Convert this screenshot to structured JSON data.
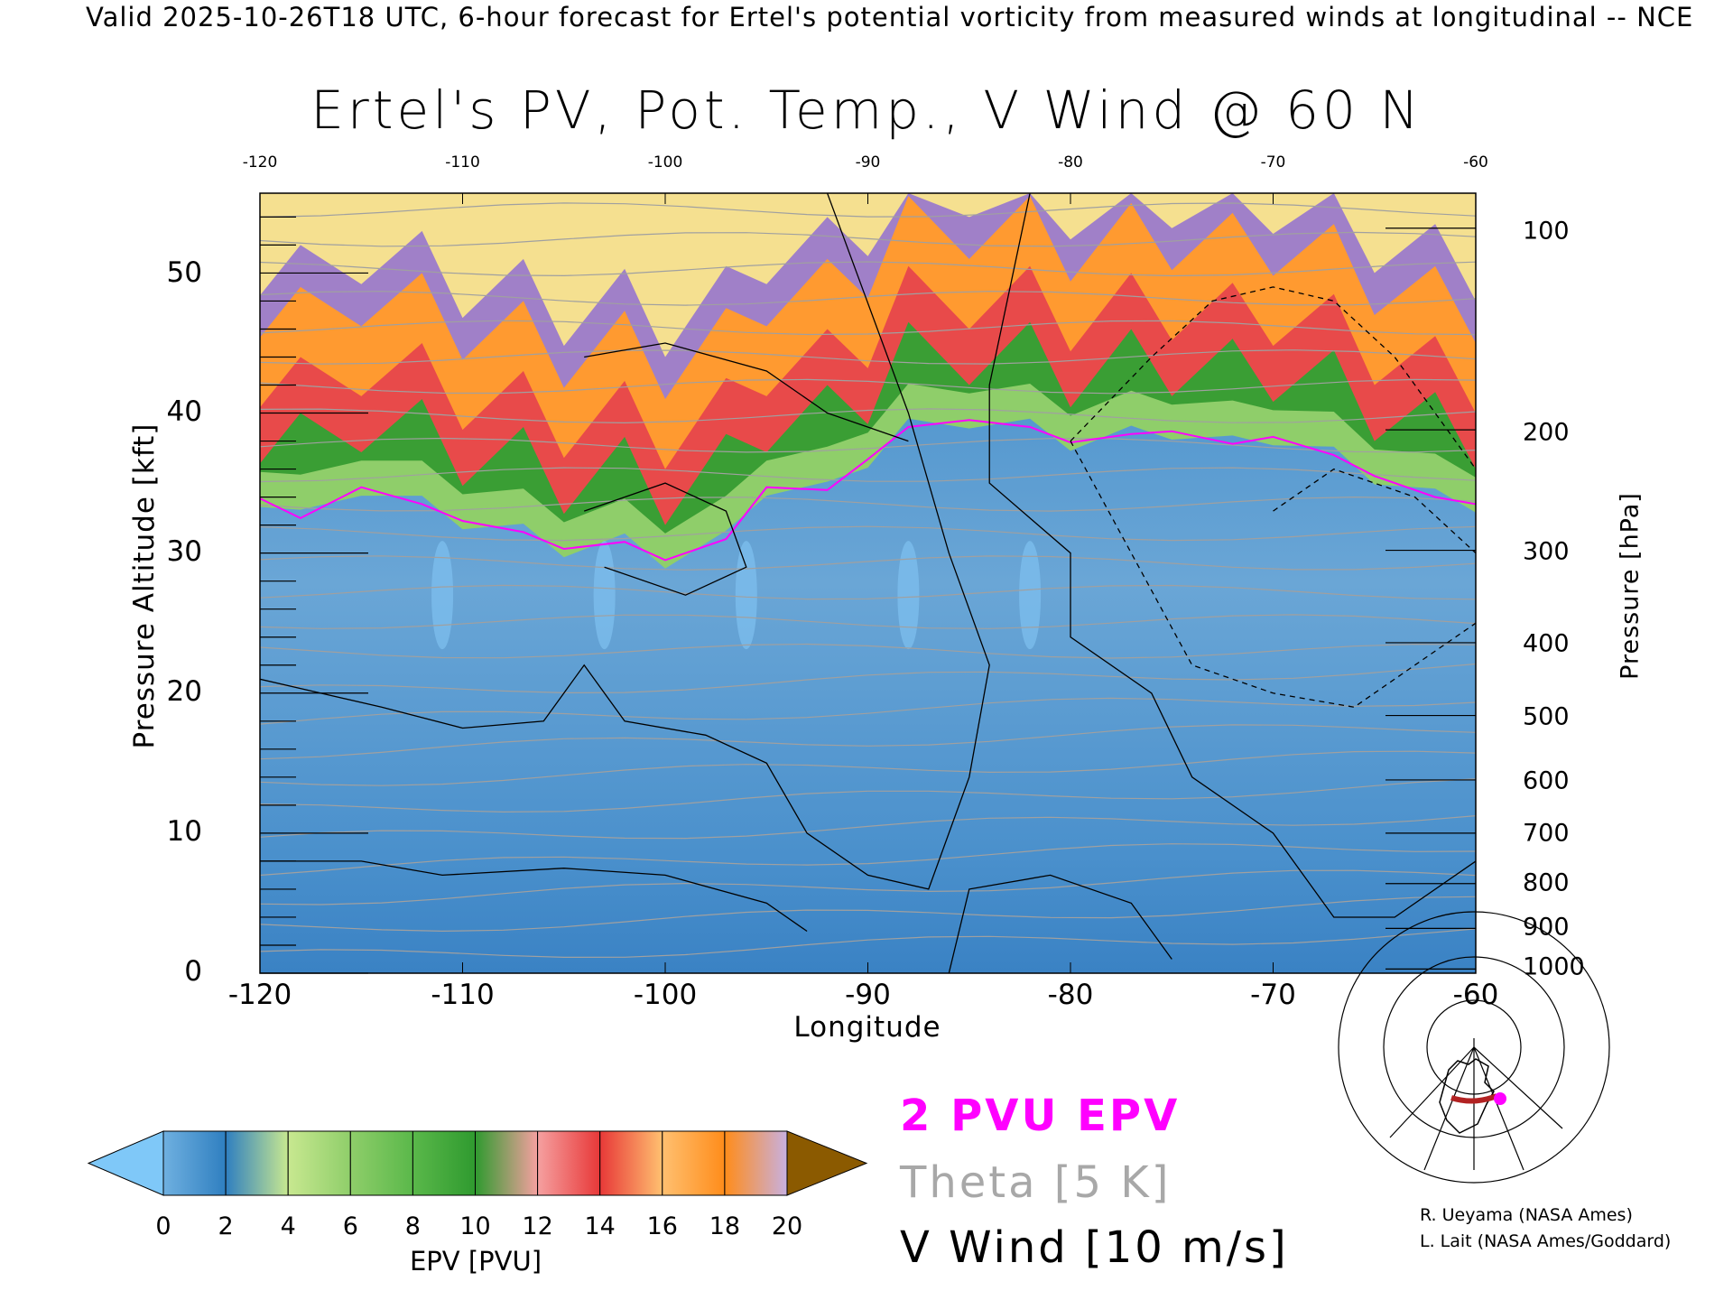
{
  "header": {
    "subtitle": "Valid 2025-10-26T18 UTC, 6-hour forecast for Ertel's potential vorticity from measured winds at longitudinal -- NCE",
    "title": "Ertel's PV, Pot. Temp., V Wind @ 60 N"
  },
  "chart_data": {
    "type": "heatmap",
    "title": "Ertel's PV, Pot. Temp., V Wind @ 60 N",
    "xlabel": "Longitude",
    "ylabel": "Pressure Altitude [kft]",
    "ylabel_right": "Pressure [hPa]",
    "xlim": [
      -120,
      -60
    ],
    "ylim": [
      0,
      55.7
    ],
    "x_ticks": [
      "-120",
      "-110",
      "-100",
      "-90",
      "-80",
      "-70",
      "-60"
    ],
    "top_ticks": [
      "-120",
      "-110",
      "-100",
      "-90",
      "-80",
      "-70",
      "-60"
    ],
    "y_ticks": [
      "0",
      "10",
      "20",
      "30",
      "40",
      "50"
    ],
    "pressure_ticks": [
      {
        "label": "100",
        "kft": 53.2
      },
      {
        "label": "200",
        "kft": 38.8
      },
      {
        "label": "300",
        "kft": 30.2
      },
      {
        "label": "400",
        "kft": 23.6
      },
      {
        "label": "500",
        "kft": 18.4
      },
      {
        "label": "600",
        "kft": 13.8
      },
      {
        "label": "700",
        "kft": 10.0
      },
      {
        "label": "800",
        "kft": 6.4
      },
      {
        "label": "900",
        "kft": 3.2
      },
      {
        "label": "1000",
        "kft": 0.3
      }
    ],
    "pv2_contour": {
      "lon": [
        -120,
        -118,
        -115,
        -112,
        -110,
        -107,
        -105,
        -102,
        -100,
        -97,
        -95,
        -92,
        -90,
        -88,
        -85,
        -82,
        -80,
        -77,
        -75,
        -72,
        -70,
        -67,
        -65,
        -62,
        -60
      ],
      "kft": [
        33.9,
        32.5,
        34.7,
        33.5,
        32.3,
        31.5,
        30.3,
        30.8,
        29.5,
        31.0,
        34.7,
        34.5,
        36.7,
        39.0,
        39.5,
        39.0,
        37.9,
        38.5,
        38.7,
        37.8,
        38.3,
        37.0,
        35.5,
        34.0,
        33.5
      ]
    },
    "colorbar": {
      "label": "EPV [PVU]",
      "ticks": [
        "0",
        "2",
        "4",
        "6",
        "8",
        "10",
        "12",
        "14",
        "16",
        "18",
        "20"
      ],
      "colors": [
        "#6fb0e0",
        "#2f7fc0",
        "#c8e890",
        "#8fce6a",
        "#5ab84a",
        "#2f9a2f",
        "#f5a0a0",
        "#e83838",
        "#ffc070",
        "#ff8c1a",
        "#c8b0e0",
        "#7040a0",
        "#fff0a0",
        "#d8a860"
      ],
      "under_color": "#7fc8f8",
      "over_color": "#8b5a00"
    },
    "legend": {
      "pv": "2 PVU EPV",
      "theta": "Theta [5 K]",
      "wind": "V Wind [10 m/s]",
      "pv_color": "#ff00ff",
      "theta_color": "#a0a0a0",
      "wind_color": "#000000"
    }
  },
  "credits": [
    "R. Ueyama (NASA Ames)",
    "L. Lait (NASA Ames/Goddard)"
  ]
}
